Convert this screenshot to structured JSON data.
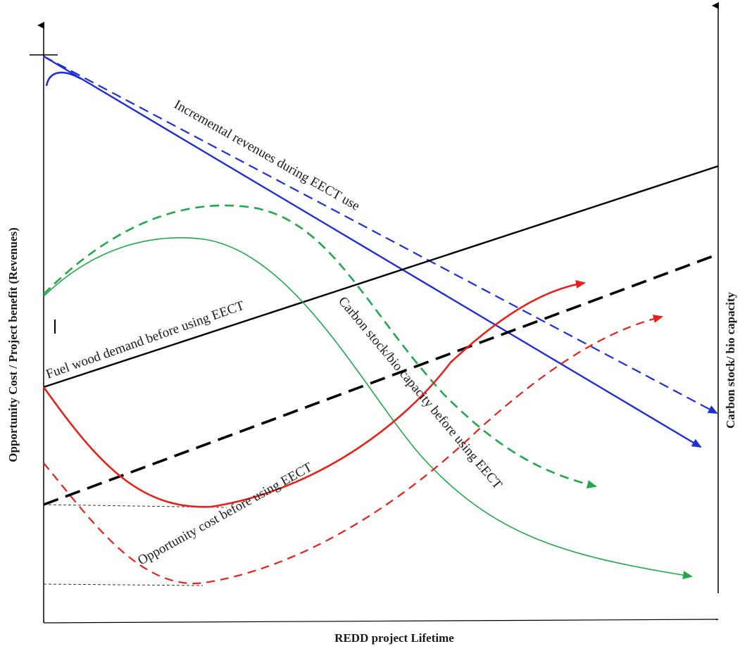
{
  "axes": {
    "x_label": "REDD project Lifetime",
    "y_left_label": "Opportunity Cost / Project benefit (Revenues)",
    "y_right_label": "Carbon stock/ bio capacity"
  },
  "curves": [
    {
      "id": "incremental-revenues",
      "label": "Incremental revenues during EECT use",
      "color": "#1f2fd6",
      "style": "solid+dashed"
    },
    {
      "id": "fuel-wood-demand",
      "label": "Fuel wood demand before using EECT",
      "color": "#000000",
      "style": "solid+dashed"
    },
    {
      "id": "carbon-stock",
      "label": "Carbon stock/bio capacity before using EECT",
      "color": "#22a84a",
      "style": "solid+dashed"
    },
    {
      "id": "opportunity-cost",
      "label": "Opportunity cost before using EECT",
      "color": "#e8201c",
      "style": "solid+dashed"
    }
  ],
  "colors": {
    "blue": "#1f2fd6",
    "black": "#000000",
    "green": "#22a84a",
    "red": "#e8201c",
    "axis": "#000000"
  }
}
